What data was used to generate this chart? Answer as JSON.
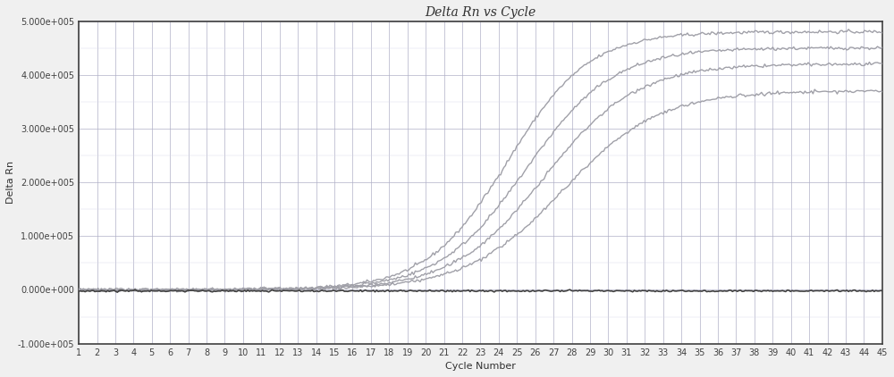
{
  "title": "Delta Rn vs Cycle",
  "xlabel": "Cycle Number",
  "ylabel": "Delta Rn",
  "xlim": [
    1,
    45
  ],
  "ylim": [
    -100000.0,
    500000.0
  ],
  "yticks": [
    -100000.0,
    0.0,
    100000.0,
    200000.0,
    300000.0,
    400000.0,
    500000.0
  ],
  "ytick_labels": [
    "-1.000e+005",
    "0.000e+000",
    "1.000e+005",
    "2.000e+005",
    "3.000e+005",
    "4.000e+005",
    "5.000e+005"
  ],
  "xticks": [
    1,
    2,
    3,
    4,
    5,
    6,
    7,
    8,
    9,
    10,
    11,
    12,
    13,
    14,
    15,
    16,
    17,
    18,
    19,
    20,
    21,
    22,
    23,
    24,
    25,
    26,
    27,
    28,
    29,
    30,
    31,
    32,
    33,
    34,
    35,
    36,
    37,
    38,
    39,
    40,
    41,
    42,
    43,
    44,
    45
  ],
  "bg_color": "#f0f0f0",
  "plot_bg_color": "#ffffff",
  "grid_color_major": "#b0b0c8",
  "grid_color_minor": "#d8d8e8",
  "curve_color": "#a0a0a8",
  "baseline_color": "#404040",
  "curves": [
    {
      "L": 480000,
      "k": 0.45,
      "x0": 24.5
    },
    {
      "L": 450000,
      "k": 0.42,
      "x0": 25.5
    },
    {
      "L": 420000,
      "k": 0.4,
      "x0": 26.5
    },
    {
      "L": 370000,
      "k": 0.38,
      "x0": 27.5
    }
  ],
  "noise_amplitude": 1500,
  "title_fontsize": 10,
  "label_fontsize": 8,
  "tick_fontsize": 7
}
